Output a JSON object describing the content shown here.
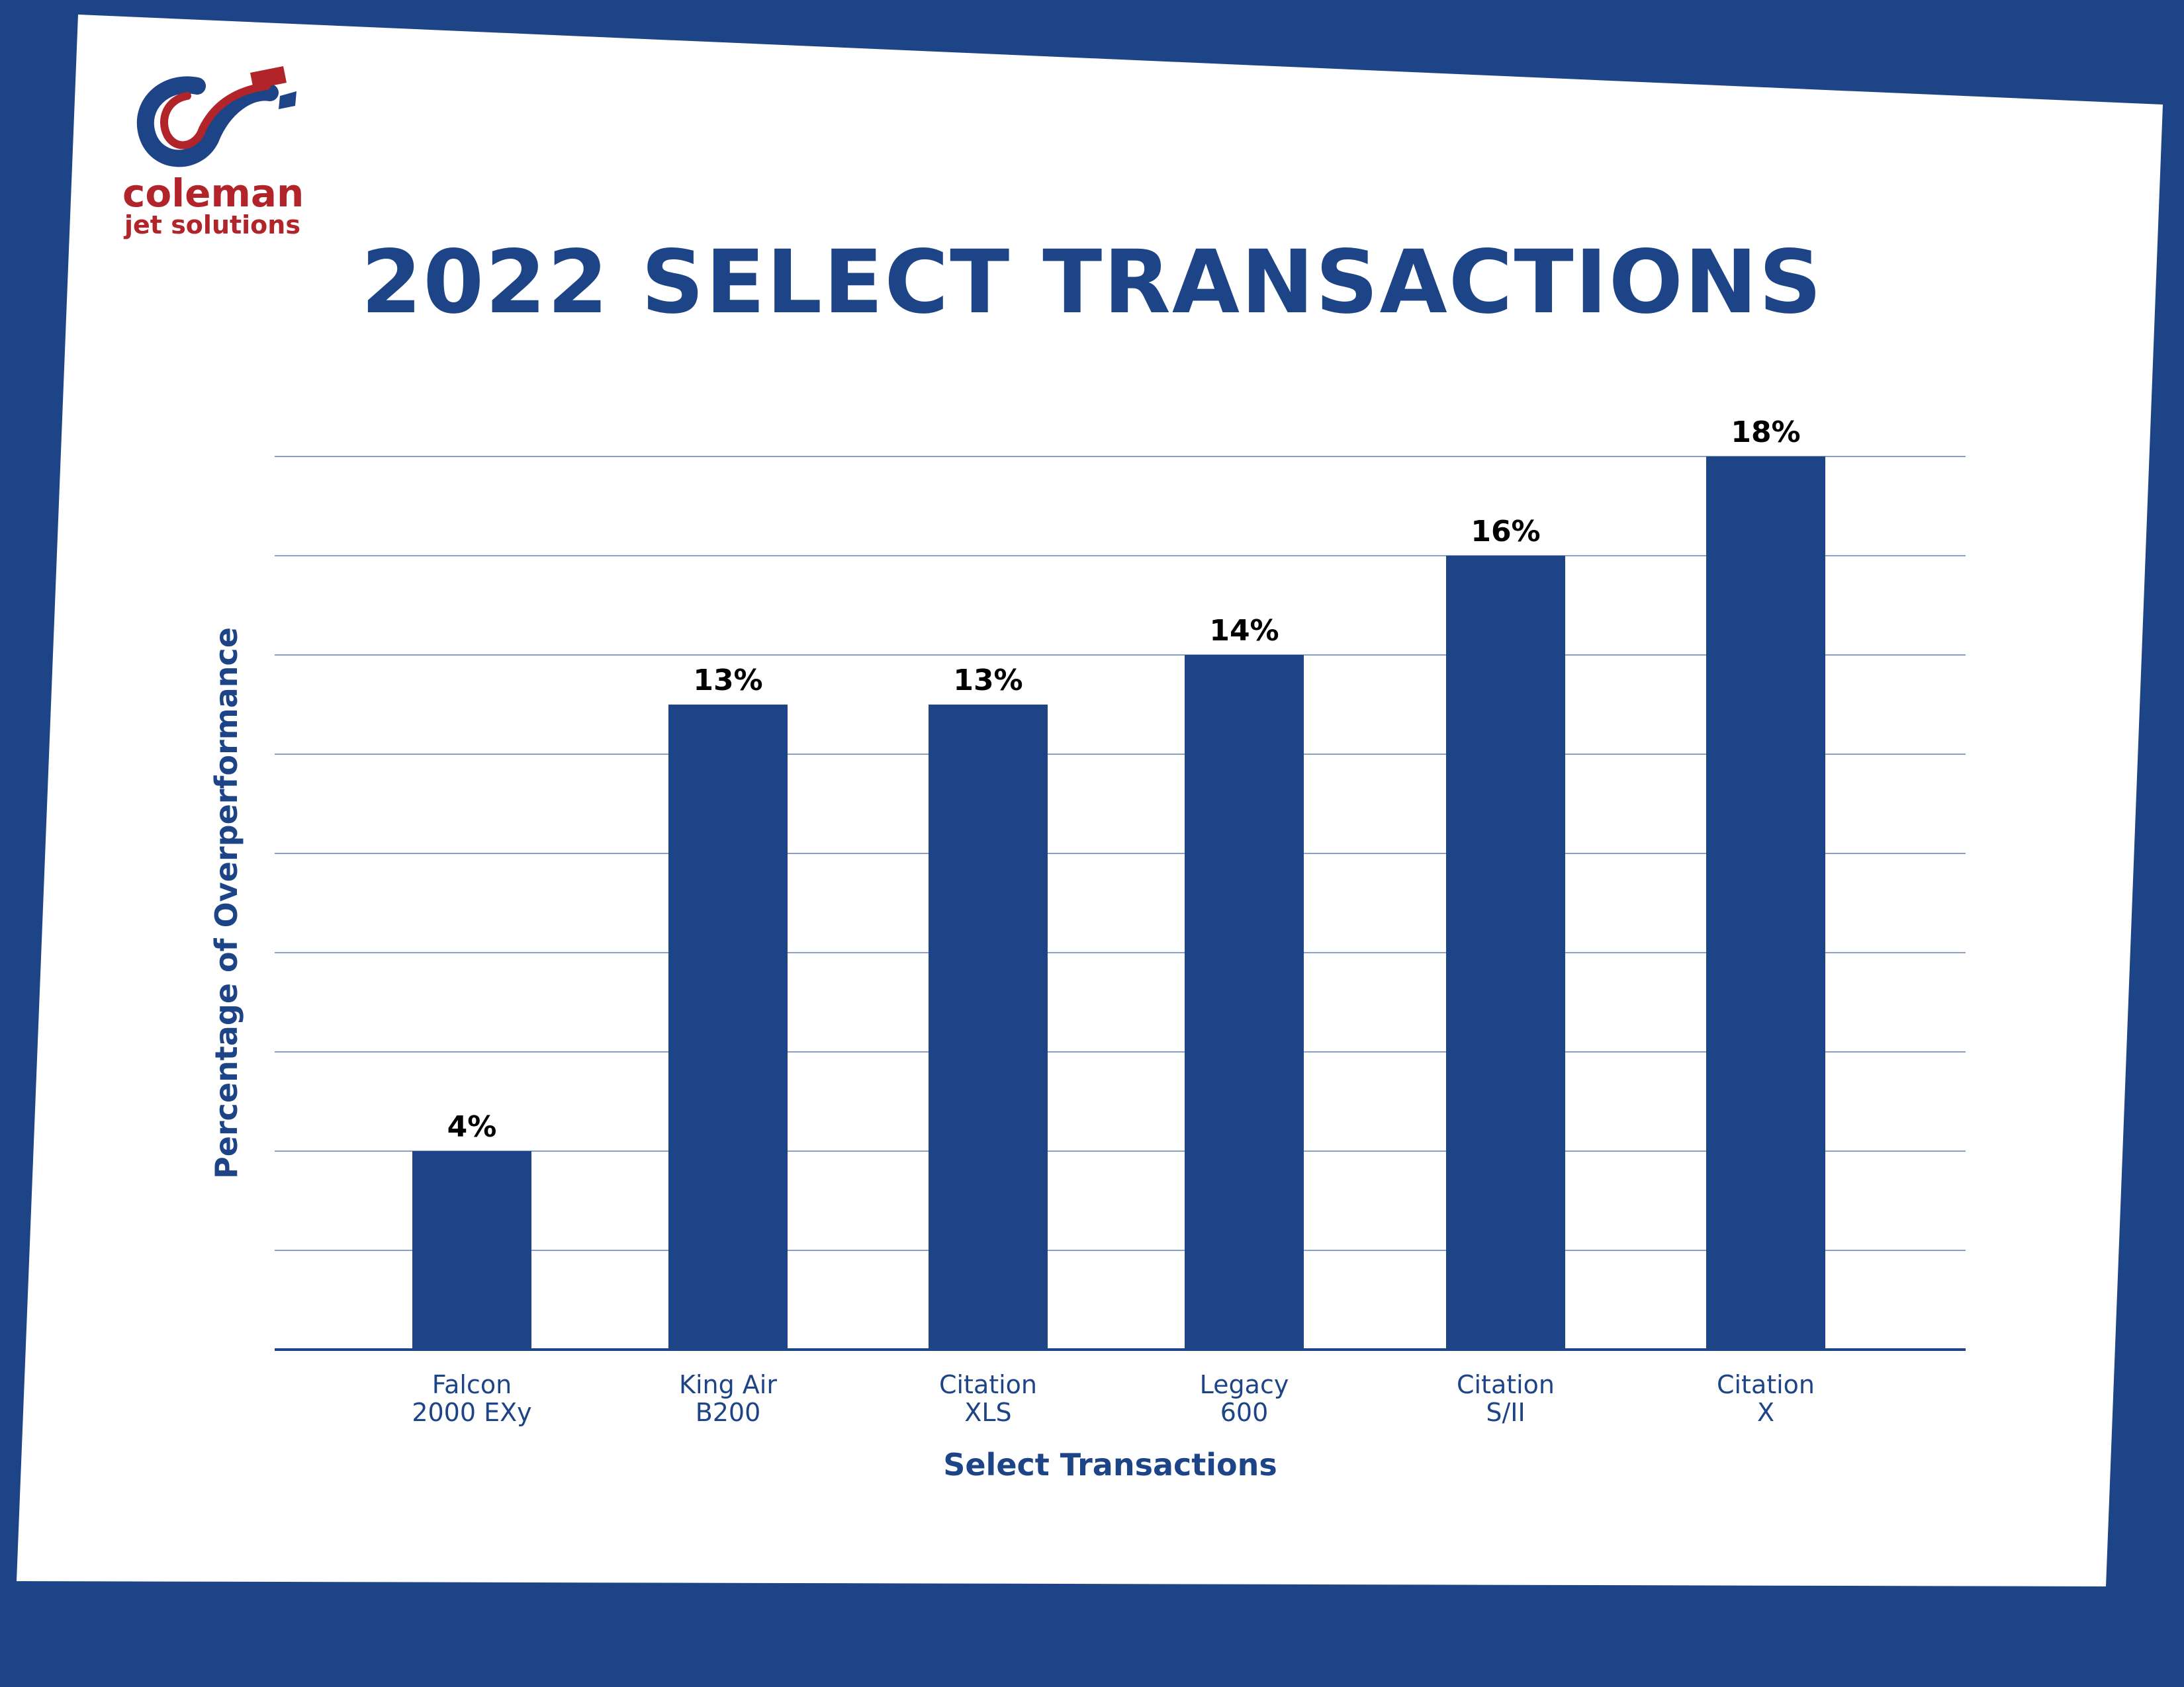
{
  "brand": {
    "name": "coleman",
    "subtitle": "jet solutions",
    "colors": {
      "primary": "#1e4488",
      "accent": "#b0242a",
      "background": "#ffffff"
    }
  },
  "chart_data": {
    "type": "bar",
    "title": "2022 SELECT TRANSACTIONS",
    "xlabel": "Select Transactions",
    "ylabel": "Percentage of Overperformance",
    "categories": [
      [
        "Falcon",
        "2000 EXy"
      ],
      [
        "King Air",
        "B200"
      ],
      [
        "Citation",
        "XLS"
      ],
      [
        "Legacy",
        "600"
      ],
      [
        "Citation",
        "S/II"
      ],
      [
        "Citation",
        "X"
      ]
    ],
    "values": [
      4,
      13,
      13,
      14,
      16,
      18
    ],
    "data_labels": [
      "4%",
      "13%",
      "13%",
      "14%",
      "16%",
      "18%"
    ],
    "ylim": [
      0,
      18
    ],
    "grid": true,
    "legend": "none"
  }
}
